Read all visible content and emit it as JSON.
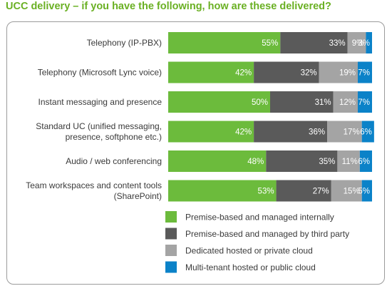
{
  "title": "UCC delivery – if you have the following, how are these delivered?",
  "chart_data": {
    "type": "bar",
    "orientation": "horizontal",
    "stacked": true,
    "title": "UCC delivery – if you have the following, how are these delivered?",
    "categories": [
      [
        "Telephony (IP-PBX)"
      ],
      [
        "Telephony (Microsoft Lync voice)"
      ],
      [
        "Instant messaging and presence"
      ],
      [
        "Standard UC (unified messaging,",
        "presence, softphone etc.)"
      ],
      [
        "Audio / web conferencing"
      ],
      [
        "Team workspaces and content tools",
        "(SharePoint)"
      ]
    ],
    "series": [
      {
        "name": "Premise-based and managed internally",
        "color": "#6cbb3c",
        "values": [
          55,
          42,
          50,
          42,
          48,
          53
        ]
      },
      {
        "name": "Premise-based and managed by third party",
        "color": "#5a5a5a",
        "values": [
          33,
          32,
          31,
          36,
          35,
          27
        ]
      },
      {
        "name": "Dedicated hosted or private cloud",
        "color": "#a4a4a4",
        "values": [
          9,
          19,
          12,
          17,
          11,
          15
        ]
      },
      {
        "name": "Multi-tenant hosted or public cloud",
        "color": "#0b82c8",
        "values": [
          3,
          7,
          7,
          6,
          6,
          5
        ]
      }
    ],
    "value_suffix": "%",
    "xlim": [
      0,
      100
    ],
    "grid": false,
    "legend_position": "bottom"
  }
}
